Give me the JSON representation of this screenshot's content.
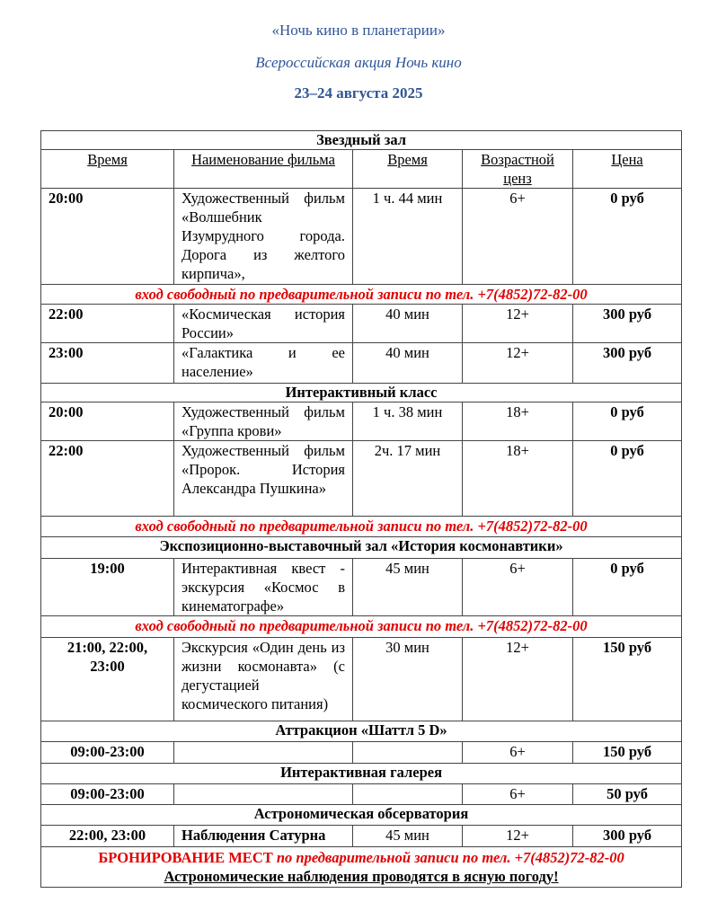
{
  "header": {
    "title": "«Ночь кино в планетарии»",
    "subtitle": "Всероссийская акция Ночь кино",
    "dates": "23–24 августа 2025"
  },
  "colors": {
    "header_blue": "#2f5597",
    "note_red": "#e00000"
  },
  "columns": [
    "Время",
    "Наименование фильма",
    "Время",
    "Возрастной ценз",
    "Цена"
  ],
  "rows": [
    {
      "type": "section",
      "text": "Звездный зал"
    },
    {
      "type": "head"
    },
    {
      "type": "item",
      "time": "20:00",
      "name": "Художественный фильм «Волшебник Изумрудного города. Дорога из желтого кирпича»,",
      "duration": "1 ч. 44 мин",
      "age": "6+",
      "price": "0 руб"
    },
    {
      "type": "note",
      "text": "вход свободный по предварительной записи по тел. +7(4852)72-82-00"
    },
    {
      "type": "item",
      "time": "22:00",
      "name": "«Космическая история России»",
      "duration": "40 мин",
      "age": "12+",
      "price": "300 руб"
    },
    {
      "type": "item",
      "time": "23:00",
      "name": "«Галактика и ее население»",
      "duration": "40 мин",
      "age": "12+",
      "price": "300 руб"
    },
    {
      "type": "section",
      "text": "Интерактивный класс"
    },
    {
      "type": "item",
      "time": "20:00",
      "name": "Художественный фильм «Группа крови»",
      "duration": "1 ч. 38 мин",
      "age": "18+",
      "price": "0 руб"
    },
    {
      "type": "item",
      "time": "22:00",
      "name": " Художественный фильм «Пророк. История Александра Пушкина»",
      "duration": "2ч. 17 мин",
      "age": "18+",
      "price": "0 руб"
    },
    {
      "type": "note",
      "text": "вход свободный по предварительной записи по тел. +7(4852)72-82-00"
    },
    {
      "type": "section",
      "text": "Экспозиционно-выставочный зал «История космонавтики»"
    },
    {
      "type": "item",
      "time": "19:00",
      "time_center": true,
      "name": "Интерактивная квест - экскурсия «Космос в кинематографе»",
      "duration": "45 мин",
      "age": "6+",
      "price": "0 руб"
    },
    {
      "type": "note",
      "text": "вход свободный по предварительной записи по тел. +7(4852)72-82-00"
    },
    {
      "type": "item",
      "time": "21:00, 22:00, 23:00",
      "time_center": true,
      "name": "Экскурсия «Один день из жизни космонавта» (с дегустацией космического питания)",
      "duration": "30 мин",
      "age": "12+",
      "price": "150 руб"
    },
    {
      "type": "section",
      "text": "Аттракцион «Шаттл 5 D»"
    },
    {
      "type": "item",
      "time": "09:00-23:00",
      "time_center": true,
      "name": "",
      "duration": "",
      "age": "6+",
      "price": "150 руб"
    },
    {
      "type": "section",
      "text": "Интерактивная галерея"
    },
    {
      "type": "item",
      "time": "09:00-23:00",
      "time_center": true,
      "name": "",
      "duration": "",
      "age": "6+",
      "price": "50 руб"
    },
    {
      "type": "section",
      "text": "Астрономическая обсерватория"
    },
    {
      "type": "item",
      "time": "22:00, 23:00",
      "time_center": true,
      "name": "Наблюдения Сатурна",
      "name_bold": true,
      "duration": "45 мин",
      "age": "12+",
      "price": "300 руб"
    }
  ],
  "footer": {
    "booking_label": "БРОНИРОВАНИЕ МЕСТ",
    "booking_text": " по предварительной записи по тел. +7(4852)72-82-00",
    "weather_note": "Астрономические наблюдения проводятся в ясную погоду!"
  }
}
